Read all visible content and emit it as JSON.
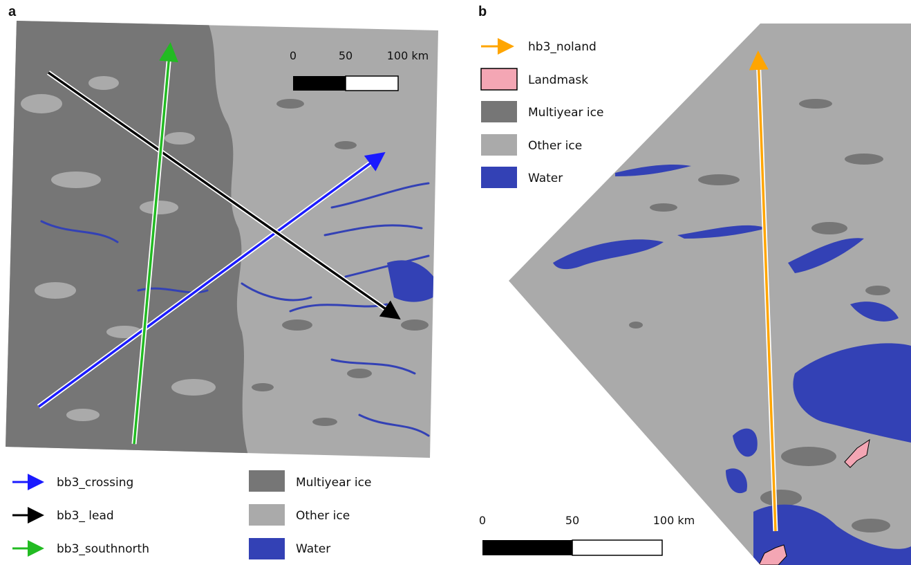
{
  "panels": {
    "a": {
      "letter": "a",
      "scale": {
        "tick0": "0",
        "tick1": "50",
        "tick2": "100 km"
      },
      "lines_legend": [
        {
          "label": "bb3_crossing",
          "color": "#1a1aff"
        },
        {
          "label": "bb3_ lead",
          "color": "#000000"
        },
        {
          "label": "bb3_southnorth",
          "color": "#22bb22"
        }
      ],
      "classes_legend": [
        {
          "label": "Multiyear ice",
          "color": "#767676"
        },
        {
          "label": "Other ice",
          "color": "#aaaaaa"
        },
        {
          "label": "Water",
          "color": "#3341b5"
        }
      ]
    },
    "b": {
      "letter": "b",
      "scale": {
        "tick0": "0",
        "tick1": "50",
        "tick2": "100 km"
      },
      "legend": [
        {
          "label": "hb3_noland",
          "kind": "arrow",
          "color": "#ffa500"
        },
        {
          "label": "Landmask",
          "kind": "box",
          "color": "#f4a6b4"
        },
        {
          "label": "Multiyear ice",
          "kind": "box",
          "color": "#767676"
        },
        {
          "label": "Other ice",
          "kind": "box",
          "color": "#aaaaaa"
        },
        {
          "label": "Water",
          "kind": "box",
          "color": "#3341b5"
        }
      ]
    }
  }
}
